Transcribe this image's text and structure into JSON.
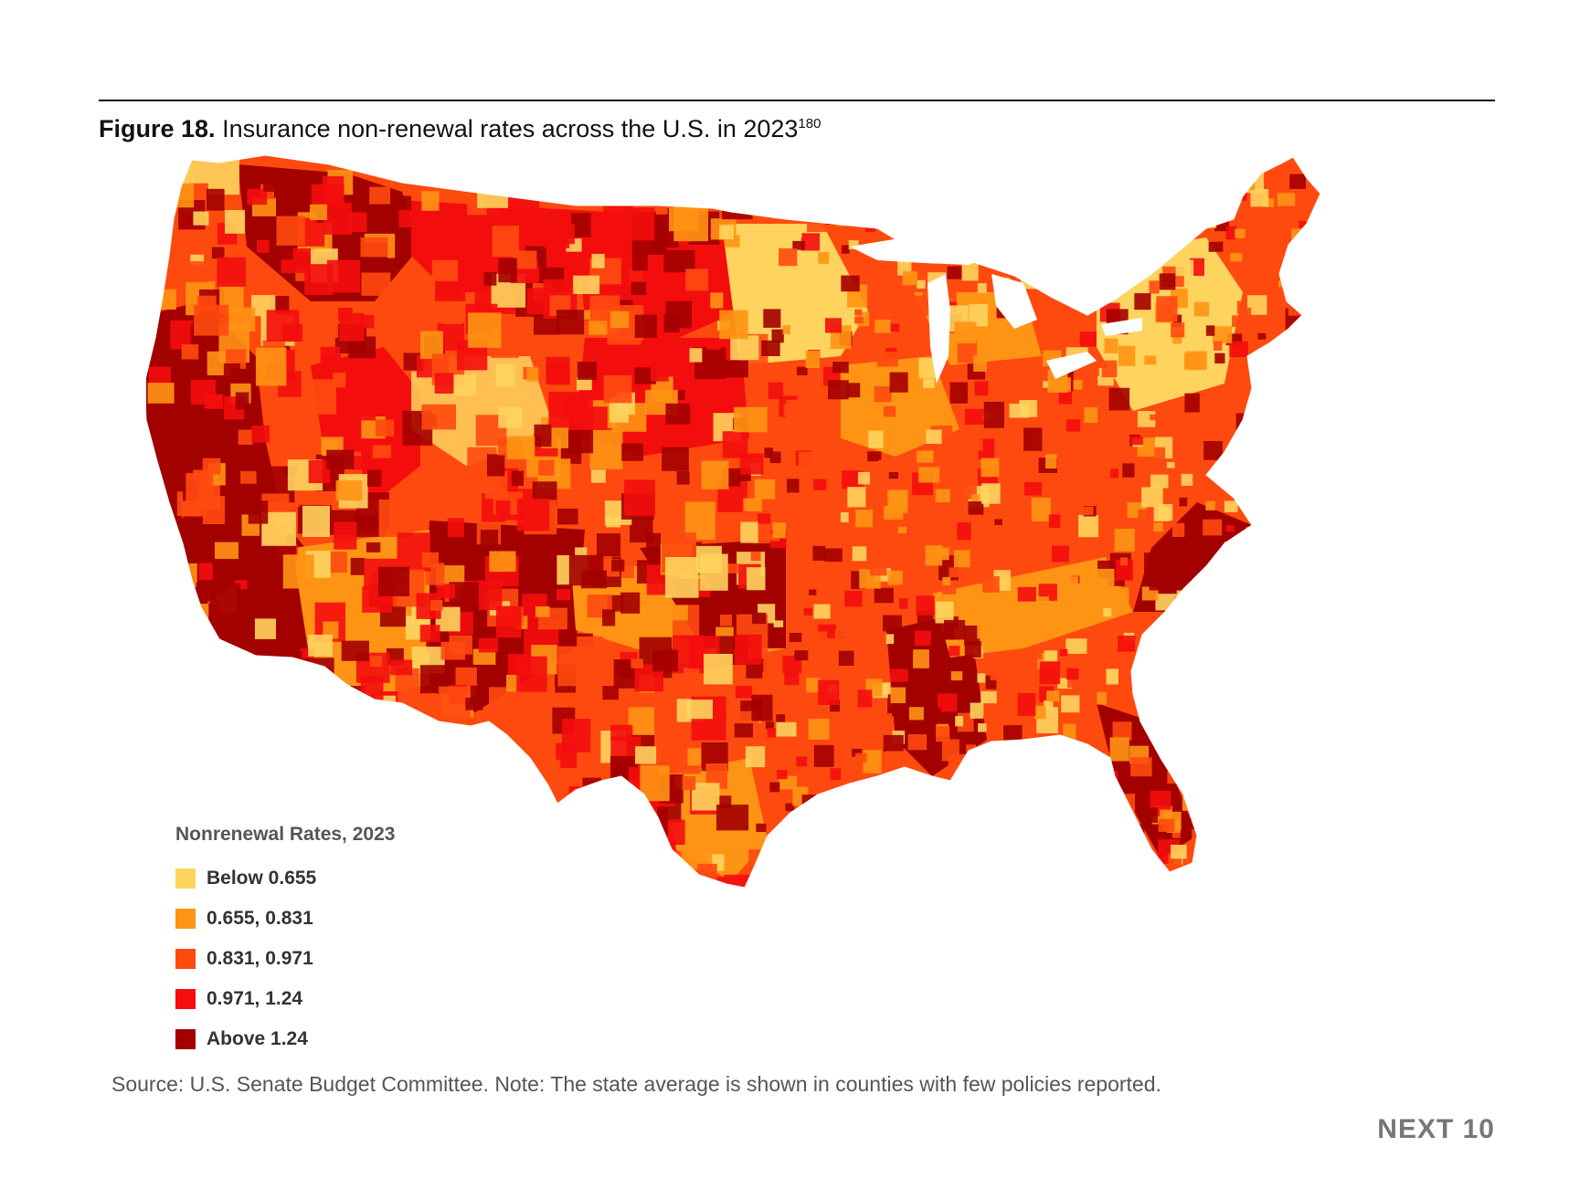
{
  "figure": {
    "label": "Figure 18.",
    "title": "Insurance non-renewal rates across the U.S. in 2023",
    "footnote": "180"
  },
  "legend": {
    "title": "Nonrenewal Rates, 2023",
    "items": [
      {
        "label": "Below 0.655",
        "color": "#FFD45E"
      },
      {
        "label": "0.655, 0.831",
        "color": "#FF9414"
      },
      {
        "label": "0.831, 0.971",
        "color": "#FF4A0F"
      },
      {
        "label": "0.971, 1.24",
        "color": "#F40D0D"
      },
      {
        "label": "Above 1.24",
        "color": "#A30000"
      }
    ]
  },
  "source": "Source: U.S. Senate Budget Committee. Note: The state average is shown in counties with few policies reported.",
  "brand": "NEXT 10"
}
